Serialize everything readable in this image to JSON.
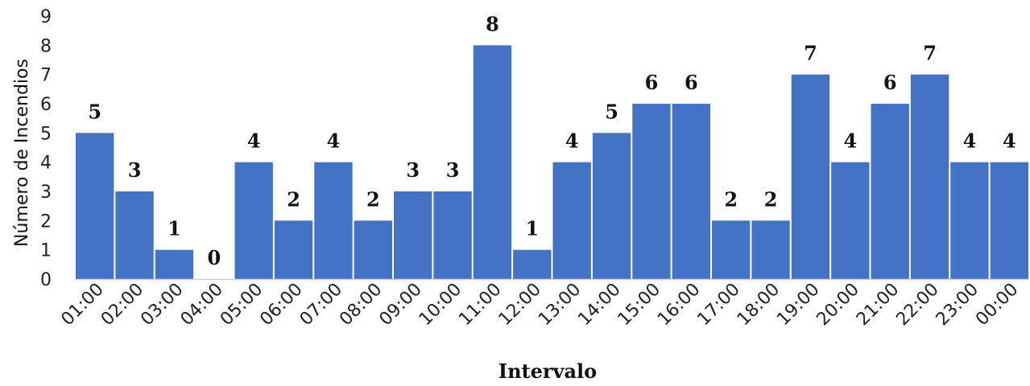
{
  "chart_data": {
    "type": "bar",
    "xlabel": "Intervalo",
    "ylabel": "Número de Incendios",
    "ylim": [
      0,
      9
    ],
    "yticks": [
      0,
      1,
      2,
      3,
      4,
      5,
      6,
      7,
      8,
      9
    ],
    "grid": false,
    "bar_color": "#4472C4",
    "categories": [
      "01:00",
      "02:00",
      "03:00",
      "04:00",
      "05:00",
      "06:00",
      "07:00",
      "08:00",
      "09:00",
      "10:00",
      "11:00",
      "12:00",
      "13:00",
      "14:00",
      "15:00",
      "16:00",
      "17:00",
      "18:00",
      "19:00",
      "20:00",
      "21:00",
      "22:00",
      "23:00",
      "00:00"
    ],
    "values": [
      5,
      3,
      1,
      0,
      4,
      2,
      4,
      2,
      3,
      3,
      8,
      1,
      4,
      5,
      6,
      6,
      2,
      2,
      7,
      4,
      6,
      7,
      4,
      4
    ]
  }
}
